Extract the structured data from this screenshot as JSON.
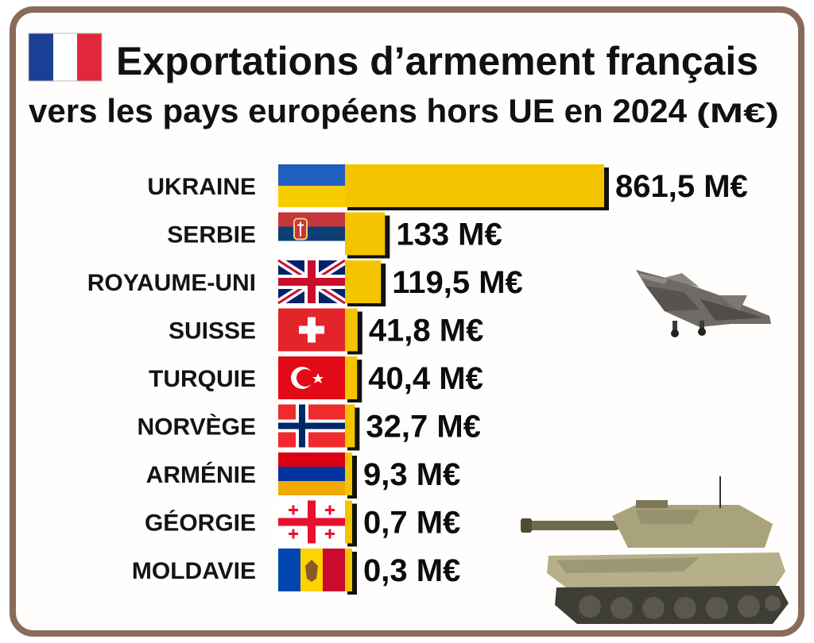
{
  "header": {
    "title_line1": "Exportations d’armement français",
    "title_line2": "vers les pays européens hors UE en 2024",
    "unit": "(M€)",
    "flag_icon": "france-flag-icon"
  },
  "colors": {
    "bar": "#f5c400",
    "bar_shadow": "#111111",
    "frame": "#8a6a5a",
    "text": "#111111"
  },
  "chart_data": {
    "type": "bar",
    "orientation": "horizontal",
    "title": "Exportations d’armement français vers les pays européens hors UE en 2024 (M€)",
    "categories": [
      "UKRAINE",
      "SERBIE",
      "ROYAUME-UNI",
      "SUISSE",
      "TURQUIE",
      "NORVÈGE",
      "ARMÉNIE",
      "GÉORGIE",
      "MOLDAVIE"
    ],
    "values": [
      861.5,
      133,
      119.5,
      41.8,
      40.4,
      32.7,
      9.3,
      0.7,
      0.3
    ],
    "value_labels": [
      "861,5 M€",
      "133 M€",
      "119,5 M€",
      "41,8 M€",
      "40,4 M€",
      "32,7 M€",
      "9,3 M€",
      "0,7 M€",
      "0,3 M€"
    ],
    "flags": [
      "ukraine-flag-icon",
      "serbia-flag-icon",
      "uk-flag-icon",
      "switzerland-flag-icon",
      "turkey-flag-icon",
      "norway-flag-icon",
      "armenia-flag-icon",
      "georgia-flag-icon",
      "moldova-flag-icon"
    ],
    "xlabel": "",
    "ylabel": "",
    "grid": false,
    "legend": "none"
  },
  "decorations": {
    "jet": "fighter-jet-illustration",
    "tank": "battle-tank-illustration"
  }
}
